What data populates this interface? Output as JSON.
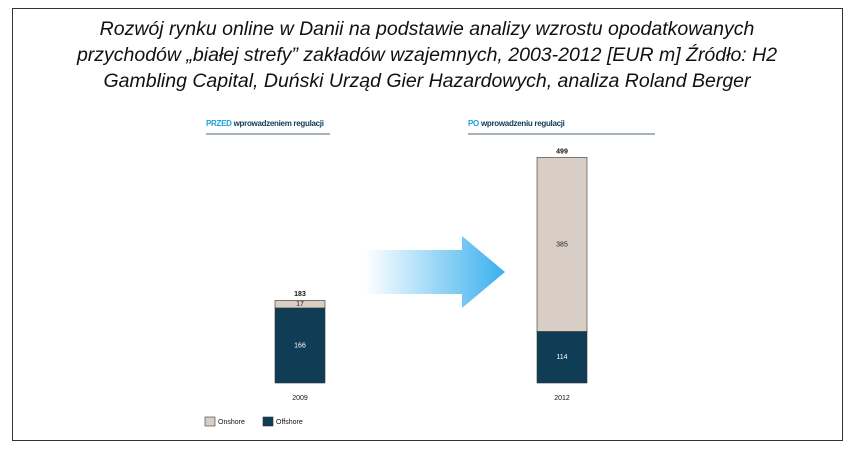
{
  "chart_data": {
    "type": "stacked_bar",
    "title": [
      "Rozwój rynku online w Danii na podstawie analizy wzrostu opodatkowanych",
      "przychodów „białej strefy” zakładów wzajemnych, 2003-2012 [EUR m] Źródło: H2",
      "Gambling Capital, Duński Urząd Gier Hazardowych, analiza Roland Berger"
    ],
    "panels": [
      {
        "highlight": "PRZED",
        "text": "wprowadzeniem regulacji"
      },
      {
        "highlight": "PO",
        "text": "wprowadzeniu regulacji"
      }
    ],
    "categories": [
      "2009",
      "2012"
    ],
    "series": [
      {
        "name": "Offshore",
        "color": "#0e3d55",
        "label_color": "#ffffff",
        "values": [
          166,
          114
        ]
      },
      {
        "name": "Onshore",
        "color": "#d8cec6",
        "label_color": "#222222",
        "values": [
          17,
          385
        ]
      }
    ],
    "total_labels": [
      183,
      499
    ],
    "highlight_color": "#1aa3d9"
  }
}
